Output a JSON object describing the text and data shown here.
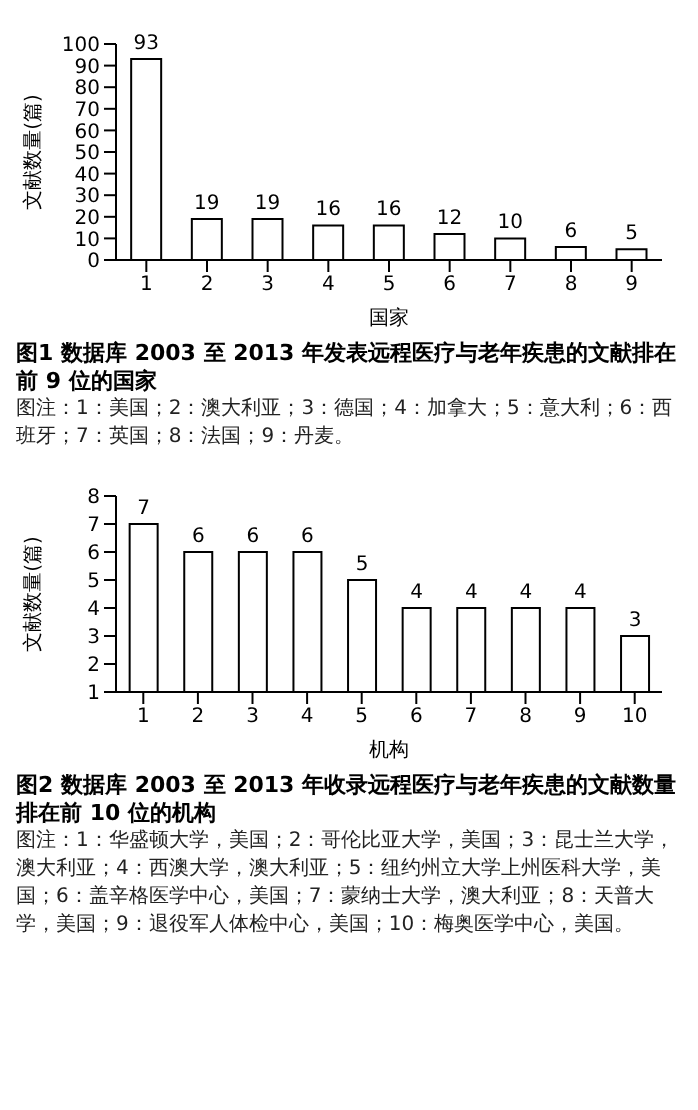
{
  "chart_data": [
    {
      "type": "bar",
      "title": "图1 数据库 2003 至 2013 年发表远程医疗与老年疾患的文献排在前 9 位的国家",
      "xlabel": "国家",
      "ylabel": "文献数量(篇)",
      "categories": [
        "1",
        "2",
        "3",
        "4",
        "5",
        "6",
        "7",
        "8",
        "9"
      ],
      "values": [
        93,
        19,
        19,
        16,
        16,
        12,
        10,
        6,
        5
      ],
      "color": "#ffffff",
      "ylim": [
        0,
        100
      ],
      "yticks": [
        0,
        10,
        20,
        30,
        40,
        50,
        60,
        70,
        80,
        90,
        100
      ],
      "data_labels": true,
      "grid": false,
      "annotations": [
        "图注：1：美国；2：澳大利亚；3：德国；4：加拿大；5：意大利；6：西班牙；7：英国；8：法国；9：丹麦。"
      ]
    },
    {
      "type": "bar",
      "title": "图2 数据库 2003 至 2013 年收录远程医疗与老年疾患的文献数量排在前 10 位的机构",
      "xlabel": "机构",
      "ylabel": "文献数量(篇)",
      "categories": [
        "1",
        "2",
        "3",
        "4",
        "5",
        "6",
        "7",
        "8",
        "9",
        "10"
      ],
      "values": [
        7,
        6,
        6,
        6,
        5,
        4,
        4,
        4,
        4,
        3
      ],
      "color": "#ffffff",
      "ylim": [
        1,
        8
      ],
      "yticks": [
        1,
        2,
        3,
        4,
        5,
        6,
        7,
        8
      ],
      "data_labels": true,
      "grid": false,
      "annotations": [
        "图注：1：华盛顿大学，美国；2：哥伦比亚大学，美国；3：昆士兰大学，澳大利亚；4：西澳大学，澳大利亚；5：纽约州立大学上州医科大学，美国；6：盖辛格医学中心，美国；7：蒙纳士大学，澳大利亚；8：天普大学，美国；9：退役军人体检中心，美国；10：梅奥医学中心，美国。"
      ]
    }
  ]
}
